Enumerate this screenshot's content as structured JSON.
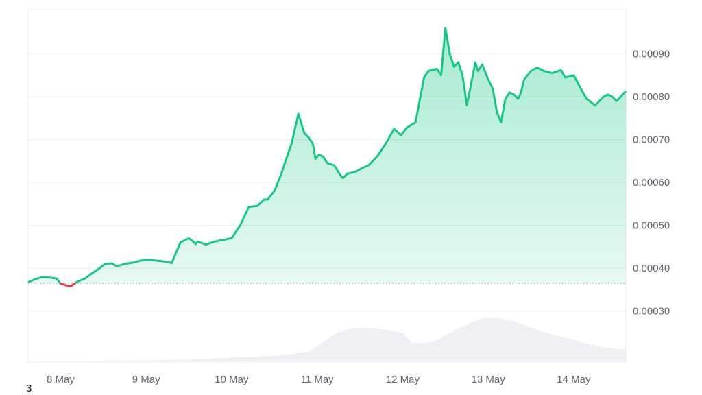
{
  "chart_data": {
    "type": "area",
    "title": "",
    "xlabel": "",
    "ylabel": "",
    "ylim": [
      0.0002,
      0.001
    ],
    "y_ticks": [
      0.0003,
      0.0004,
      0.0005,
      0.0006,
      0.0007,
      0.0008,
      0.0009
    ],
    "y_tick_labels": [
      "0.00030",
      "0.00040",
      "0.00050",
      "0.00060",
      "0.00070",
      "0.00080",
      "0.00090"
    ],
    "x_range": [
      7.62,
      14.61
    ],
    "x_ticks": [
      8,
      9,
      10,
      11,
      12,
      13,
      14
    ],
    "x_tick_labels": [
      "8 May",
      "9 May",
      "10 May",
      "11 May",
      "12 May",
      "13 May",
      "14 May"
    ],
    "baseline": 0.000365,
    "colors": {
      "up": "#16c784",
      "down": "#ea3943",
      "volume": "#eef0f4"
    },
    "series": [
      {
        "x": [
          7.62,
          7.7,
          7.78,
          7.87,
          7.95,
          8.0,
          8.06,
          8.12,
          8.2,
          8.28,
          8.35,
          8.43,
          8.52,
          8.6,
          8.65,
          8.7,
          8.78,
          8.85,
          8.92,
          9.0,
          9.1,
          9.2,
          9.3,
          9.4,
          9.5,
          9.55,
          9.58,
          9.6,
          9.63,
          9.7,
          9.8,
          9.9,
          10.0,
          10.1,
          10.2,
          10.3,
          10.38,
          10.42,
          10.5,
          10.58,
          10.63,
          10.7,
          10.78,
          10.85,
          10.9,
          10.95,
          10.98,
          11.02,
          11.07,
          11.12,
          11.2,
          11.26,
          11.3,
          11.35,
          11.45,
          11.52,
          11.6,
          11.7,
          11.8,
          11.9,
          11.98,
          12.05,
          12.15,
          12.25,
          12.3,
          12.4,
          12.45,
          12.5,
          12.55,
          12.6,
          12.65,
          12.7,
          12.75,
          12.82,
          12.85,
          12.88,
          12.93,
          13.0,
          13.05,
          13.08,
          13.1,
          13.15,
          13.2,
          13.25,
          13.3,
          13.35,
          13.38,
          13.42,
          13.5,
          13.57,
          13.65,
          13.75,
          13.85,
          13.9,
          14.0,
          14.08,
          14.15,
          14.25,
          14.3,
          14.35,
          14.4,
          14.45,
          14.5,
          14.55,
          14.61
        ],
        "y": [
          0.000367,
          0.000374,
          0.000379,
          0.000378,
          0.000376,
          0.000364,
          0.00036,
          0.000358,
          0.000369,
          0.000375,
          0.000386,
          0.000396,
          0.00041,
          0.000411,
          0.000405,
          0.000407,
          0.000411,
          0.000413,
          0.000417,
          0.00042,
          0.000418,
          0.000416,
          0.000412,
          0.00046,
          0.00047,
          0.000462,
          0.000456,
          0.000462,
          0.00046,
          0.000455,
          0.000462,
          0.000466,
          0.00047,
          0.0005,
          0.000543,
          0.000545,
          0.00056,
          0.00056,
          0.00058,
          0.00062,
          0.00065,
          0.00069,
          0.00076,
          0.000715,
          0.000705,
          0.00069,
          0.000655,
          0.000665,
          0.00066,
          0.000645,
          0.00064,
          0.00062,
          0.00061,
          0.00062,
          0.000625,
          0.000633,
          0.00064,
          0.00066,
          0.00069,
          0.000725,
          0.00071,
          0.000728,
          0.00074,
          0.000845,
          0.00086,
          0.000865,
          0.00085,
          0.00096,
          0.0009,
          0.00087,
          0.00088,
          0.00085,
          0.00078,
          0.00085,
          0.00088,
          0.00086,
          0.000875,
          0.00084,
          0.00082,
          0.00079,
          0.000765,
          0.00074,
          0.000795,
          0.00081,
          0.000805,
          0.000795,
          0.000808,
          0.00084,
          0.00086,
          0.000868,
          0.00086,
          0.000855,
          0.000862,
          0.000845,
          0.00085,
          0.00082,
          0.000795,
          0.00078,
          0.00079,
          0.0008,
          0.000805,
          0.0008,
          0.00079,
          0.0008,
          0.000813
        ]
      }
    ],
    "volume": {
      "x": [
        7.62,
        8.0,
        8.5,
        9.0,
        9.5,
        10.0,
        10.5,
        10.9,
        11.1,
        11.25,
        11.4,
        11.6,
        11.8,
        12.0,
        12.1,
        12.25,
        12.4,
        12.6,
        12.8,
        12.95,
        13.1,
        13.3,
        13.45,
        13.6,
        13.8,
        14.0,
        14.2,
        14.35,
        14.5,
        14.61
      ],
      "level": [
        0.0,
        0.002,
        0.008,
        0.02,
        0.04,
        0.08,
        0.12,
        0.2,
        0.45,
        0.62,
        0.7,
        0.7,
        0.68,
        0.6,
        0.4,
        0.38,
        0.45,
        0.65,
        0.82,
        0.92,
        0.92,
        0.85,
        0.75,
        0.65,
        0.55,
        0.45,
        0.36,
        0.3,
        0.27,
        0.25
      ]
    }
  },
  "footer": {
    "corner_text": "3"
  }
}
